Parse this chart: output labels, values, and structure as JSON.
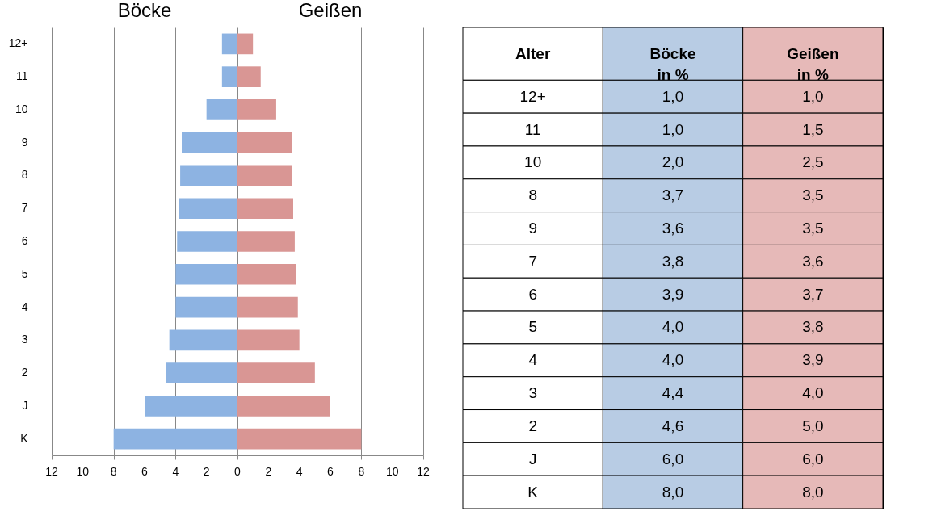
{
  "chart_data": [
    {
      "type": "bar",
      "orientation": "horizontal",
      "stacked": true,
      "categories": [
        "12+",
        "11",
        "10",
        "9",
        "8",
        "7",
        "6",
        "5",
        "4",
        "3",
        "2",
        "J",
        "K"
      ],
      "series": [
        {
          "name": "Böcke",
          "color": "#8db3e2",
          "values": [
            -1.0,
            -1.0,
            -2.0,
            -3.6,
            -3.7,
            -3.8,
            -3.9,
            -4.0,
            -4.0,
            -4.4,
            -4.6,
            -6.0,
            -8.0
          ]
        },
        {
          "name": "Geißen",
          "color": "#d99694",
          "values": [
            1.0,
            1.5,
            2.5,
            3.5,
            3.5,
            3.6,
            3.7,
            3.8,
            3.9,
            4.0,
            5.0,
            6.0,
            8.0
          ]
        }
      ],
      "xlim": [
        -12,
        12
      ],
      "xticks": [
        {
          "value": -12,
          "label": "12"
        },
        {
          "value": -10,
          "label": "10"
        },
        {
          "value": -8,
          "label": "8"
        },
        {
          "value": -6,
          "label": "6"
        },
        {
          "value": -4,
          "label": "4"
        },
        {
          "value": -2,
          "label": "2"
        },
        0,
        2,
        4,
        6,
        8,
        10,
        12
      ],
      "grid": "x",
      "legend": false
    },
    {
      "type": "other",
      "xlabel": "Alter",
      "categories": [
        "12+",
        "11",
        "10",
        "8",
        "9",
        "7",
        "6",
        "5",
        "4",
        "3",
        "2",
        "J",
        "K"
      ],
      "series": [
        {
          "name": "Böcke in %",
          "color": "#b8cce4",
          "values": [
            1.0,
            1.0,
            2.0,
            3.7,
            3.6,
            3.8,
            3.9,
            4.0,
            4.0,
            4.4,
            4.6,
            6.0,
            8.0
          ],
          "value_labels": [
            "1,0",
            "1,0",
            "2,0",
            "3,7",
            "3,6",
            "3,8",
            "3,9",
            "4,0",
            "4,0",
            "4,4",
            "4,6",
            "6,0",
            "8,0"
          ]
        },
        {
          "name": "Geißen in %",
          "color": "#e6b9b8",
          "values": [
            1.0,
            1.5,
            2.5,
            3.5,
            3.5,
            3.6,
            3.7,
            3.8,
            3.9,
            4.0,
            5.0,
            6.0,
            8.0
          ],
          "value_labels": [
            "1,0",
            "1,5",
            "2,5",
            "3,5",
            "3,5",
            "3,6",
            "3,7",
            "3,8",
            "3,9",
            "4,0",
            "5,0",
            "6,0",
            "8,0"
          ]
        }
      ]
    }
  ]
}
